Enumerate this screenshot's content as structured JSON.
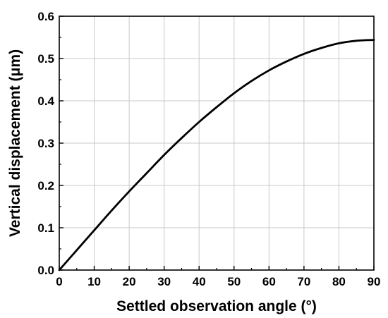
{
  "chart_data": {
    "type": "line",
    "title": "",
    "xlabel": "Settled observation angle (°)",
    "ylabel": "Vertical displacement (μm)",
    "xlim": [
      0,
      90
    ],
    "ylim": [
      0,
      0.6
    ],
    "xticks": [
      "0",
      "10",
      "20",
      "30",
      "40",
      "50",
      "60",
      "70",
      "80",
      "90"
    ],
    "yticks": [
      "0.0",
      "0.1",
      "0.2",
      "0.3",
      "0.4",
      "0.5",
      "0.6"
    ],
    "grid": true,
    "legend": "none",
    "line_color": "#000000",
    "series": [
      {
        "x": [
          0,
          5,
          10,
          15,
          20,
          25,
          30,
          35,
          40,
          45,
          50,
          55,
          60,
          65,
          70,
          75,
          80,
          85,
          90
        ],
        "y": [
          0.0,
          0.047,
          0.094,
          0.141,
          0.186,
          0.229,
          0.272,
          0.312,
          0.35,
          0.385,
          0.418,
          0.447,
          0.472,
          0.493,
          0.511,
          0.525,
          0.536,
          0.542,
          0.544
        ]
      }
    ]
  }
}
